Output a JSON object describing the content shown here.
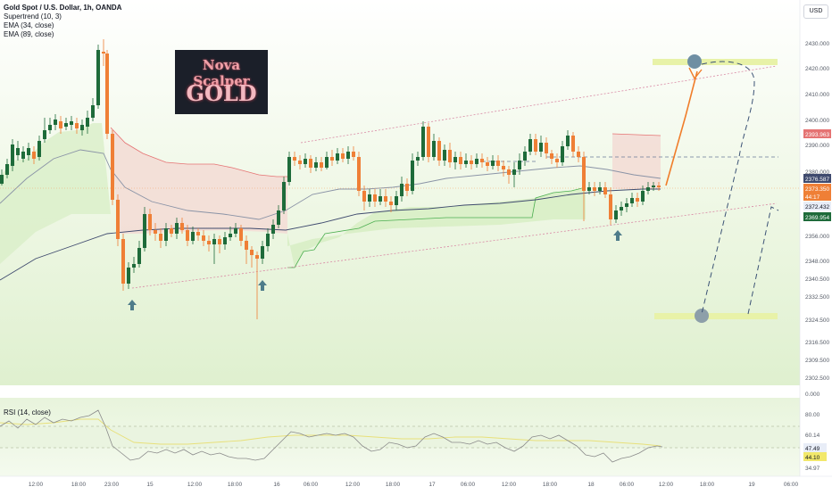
{
  "header": {
    "symbol_title": "Gold Spot / U.S. Dollar, 1h, OANDA",
    "indicators": [
      "Supertrend (10, 3)",
      "EMA (34, close)",
      "EMA (89, close)"
    ],
    "currency_button": "USD"
  },
  "logo": {
    "line1": "Nova Scalper",
    "line2": "GOLD"
  },
  "colors": {
    "up": "#1e6b3a",
    "down": "#ef7f36",
    "projection": "#f07d2a",
    "box_green": "#e5f4d6",
    "box_red": "#f7e3e0",
    "supertrend_red": "#e57373",
    "supertrend_green": "#4caf50",
    "ema34": "#8a93a6",
    "ema89": "#3f4a6e",
    "target_zone": "#e8f2a8",
    "arrow": "#4e7c8a",
    "rsi_line": "#8a8a8a",
    "rsi_ma": "#e8e07a"
  },
  "price_axis": {
    "ticks": [
      "2430.000",
      "2420.000",
      "2410.000",
      "2400.000",
      "2390.000",
      "2380.000",
      "2356.000",
      "2348.000",
      "2340.500",
      "2332.500",
      "2324.500",
      "2316.500",
      "2309.500",
      "2302.500",
      "0.000"
    ],
    "tags": [
      {
        "text": "2393.963",
        "bg": "#e57373",
        "fg": "#ffffff"
      },
      {
        "text": "2376.587",
        "bg": "#3f4a6e",
        "fg": "#ffffff"
      },
      {
        "text": "2373.350",
        "bg": "#ef7f36",
        "fg": "#ffffff"
      },
      {
        "text": "44:17",
        "bg": "#ef7f36",
        "fg": "#ffffff"
      },
      {
        "text": "2372.432",
        "bg": "#e8edf7",
        "fg": "#131722"
      },
      {
        "text": "2369.954",
        "bg": "#1e6b3a",
        "fg": "#ffffff"
      }
    ]
  },
  "rsi": {
    "label": "RSI (14, close)",
    "ticks": [
      "80.00",
      "60.14",
      "34.97"
    ],
    "tags": [
      {
        "text": "47.49",
        "bg": "#e8edf7",
        "fg": "#131722"
      },
      {
        "text": "44.10",
        "bg": "#f2e86b",
        "fg": "#131722"
      }
    ]
  },
  "time_axis": {
    "labels": [
      "12:00",
      "18:00",
      "23:00",
      "15",
      "12:00",
      "18:00",
      "16",
      "06:00",
      "12:00",
      "18:00",
      "17",
      "06:00",
      "12:00",
      "18:00",
      "18",
      "06:00",
      "12:00",
      "18:00",
      "19",
      "06:00"
    ]
  }
}
